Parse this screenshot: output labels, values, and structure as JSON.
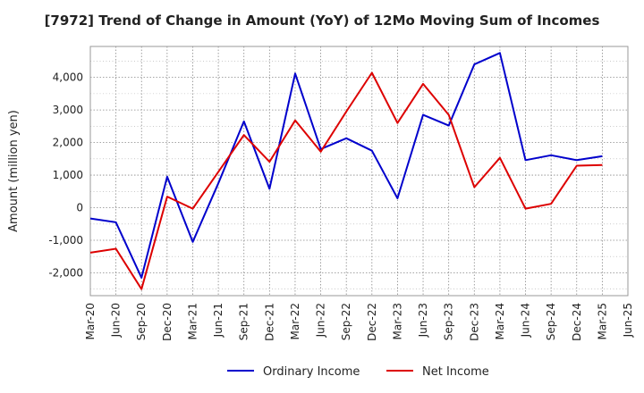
{
  "chart_data": {
    "type": "line",
    "title": "[7972]  Trend of Change in Amount (YoY) of 12Mo Moving Sum of Incomes",
    "xlabel": "",
    "ylabel": "Amount (million yen)",
    "ylim": [
      -2700,
      4950
    ],
    "yticks": [
      4000,
      3000,
      2000,
      1000,
      0,
      -1000,
      -2000
    ],
    "ytick_labels": [
      "4,000",
      "3,000",
      "2,000",
      "1,000",
      "0",
      "-1,000",
      "-2,000"
    ],
    "categories": [
      "Mar-20",
      "Jun-20",
      "Sep-20",
      "Dec-20",
      "Mar-21",
      "Jun-21",
      "Sep-21",
      "Dec-21",
      "Mar-22",
      "Jun-22",
      "Sep-22",
      "Dec-22",
      "Mar-23",
      "Jun-23",
      "Sep-23",
      "Dec-23",
      "Mar-24",
      "Jun-24",
      "Sep-24",
      "Dec-24",
      "Mar-25",
      "Jun-25"
    ],
    "grid": true,
    "legend_position": "bottom",
    "series": [
      {
        "name": "Ordinary Income",
        "color": "#0000cc",
        "values": [
          -330,
          -450,
          -2150,
          950,
          -1050,
          750,
          2650,
          580,
          4120,
          1800,
          2130,
          1750,
          290,
          2850,
          2520,
          4400,
          4750,
          1460,
          1610,
          1460,
          1580,
          null
        ]
      },
      {
        "name": "Net Income",
        "color": "#dd0000",
        "values": [
          -1380,
          -1260,
          -2500,
          340,
          -30,
          1100,
          2230,
          1410,
          2680,
          1720,
          2950,
          4140,
          2600,
          3800,
          2850,
          630,
          1530,
          -30,
          120,
          1290,
          1310,
          null
        ]
      }
    ]
  }
}
